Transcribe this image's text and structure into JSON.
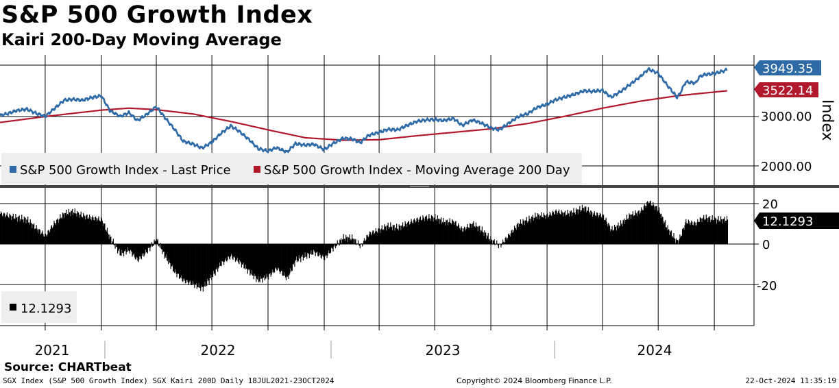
{
  "header": {
    "title": "S&P 500 Growth Index",
    "subtitle": "Kairi 200-Day Moving Average"
  },
  "footer": {
    "source": "Source: CHARTbeat",
    "left": "SGX Index (S&P 500 Growth Index) SGX Kairi 200D  Daily 18JUL2021-23OCT2024",
    "middle": "Copyright© 2024 Bloomberg Finance L.P.",
    "right": "22-Oct-2024 11:35:19"
  },
  "colors": {
    "price": "#2e6aa6",
    "ma": "#b2182b",
    "kairi": "#000000",
    "grid": "#000000",
    "legend_bg": "#eeeeee"
  },
  "chart_data": [
    {
      "type": "line",
      "title": "S&P 500 Growth Index",
      "ylabel": "Index",
      "ylim": [
        1600,
        4200
      ],
      "x_ticks": [
        "2021",
        "2022",
        "2023",
        "2024"
      ],
      "y_ticks": [
        "2000.00",
        "3000.00"
      ],
      "legend_position": "bottom-left",
      "series": [
        {
          "name": "S&P 500 Growth Index - Last Price",
          "last_label": "3949.35",
          "x": [
            "2021-07-19",
            "2021-08-01",
            "2021-08-15",
            "2021-09-01",
            "2021-09-15",
            "2021-10-01",
            "2021-10-15",
            "2021-11-01",
            "2021-11-15",
            "2021-12-01",
            "2021-12-15",
            "2022-01-01",
            "2022-01-15",
            "2022-02-01",
            "2022-02-15",
            "2022-03-01",
            "2022-03-15",
            "2022-04-01",
            "2022-04-15",
            "2022-05-01",
            "2022-05-15",
            "2022-06-01",
            "2022-06-15",
            "2022-07-01",
            "2022-07-15",
            "2022-08-01",
            "2022-08-15",
            "2022-09-01",
            "2022-09-15",
            "2022-10-01",
            "2022-10-15",
            "2022-11-01",
            "2022-11-15",
            "2022-12-01",
            "2022-12-15",
            "2023-01-01",
            "2023-01-15",
            "2023-02-01",
            "2023-02-15",
            "2023-03-01",
            "2023-03-15",
            "2023-04-01",
            "2023-04-15",
            "2023-05-01",
            "2023-05-15",
            "2023-06-01",
            "2023-06-15",
            "2023-07-01",
            "2023-07-15",
            "2023-08-01",
            "2023-08-15",
            "2023-09-01",
            "2023-09-15",
            "2023-10-01",
            "2023-10-15",
            "2023-11-01",
            "2023-11-15",
            "2023-12-01",
            "2023-12-15",
            "2024-01-01",
            "2024-01-15",
            "2024-02-01",
            "2024-02-15",
            "2024-03-01",
            "2024-03-15",
            "2024-04-01",
            "2024-04-15",
            "2024-05-01",
            "2024-05-15",
            "2024-06-01",
            "2024-06-15",
            "2024-07-01",
            "2024-07-15",
            "2024-08-01",
            "2024-08-05",
            "2024-08-15",
            "2024-09-01",
            "2024-09-06",
            "2024-09-15",
            "2024-10-01",
            "2024-10-15",
            "2024-10-22"
          ],
          "values": [
            3020,
            3060,
            3120,
            3150,
            3070,
            3000,
            3150,
            3330,
            3350,
            3330,
            3380,
            3420,
            3120,
            3000,
            3080,
            2920,
            3030,
            3200,
            2980,
            2740,
            2500,
            2440,
            2360,
            2480,
            2650,
            2810,
            2700,
            2520,
            2350,
            2300,
            2370,
            2280,
            2450,
            2420,
            2440,
            2330,
            2450,
            2560,
            2550,
            2470,
            2620,
            2680,
            2740,
            2730,
            2810,
            2900,
            2930,
            2940,
            2920,
            2960,
            2820,
            2930,
            2870,
            2770,
            2730,
            2880,
            3000,
            3060,
            3180,
            3250,
            3340,
            3400,
            3450,
            3520,
            3510,
            3530,
            3390,
            3510,
            3640,
            3800,
            3960,
            3880,
            3650,
            3390,
            3450,
            3700,
            3680,
            3800,
            3850,
            3870,
            3920,
            3949.35
          ]
        },
        {
          "name": "S&P 500 Growth Index - Moving Average 200 Day",
          "last_label": "3522.14",
          "x": [
            "2021-07-19",
            "2021-10-01",
            "2022-01-01",
            "2022-02-15",
            "2022-04-01",
            "2022-06-01",
            "2022-08-01",
            "2022-10-01",
            "2022-12-01",
            "2023-02-01",
            "2023-04-01",
            "2023-06-01",
            "2023-08-01",
            "2023-10-01",
            "2023-12-01",
            "2024-02-01",
            "2024-04-01",
            "2024-06-01",
            "2024-08-01",
            "2024-10-22"
          ],
          "values": [
            2880,
            3000,
            3130,
            3170,
            3140,
            3050,
            2900,
            2730,
            2570,
            2520,
            2530,
            2610,
            2680,
            2750,
            2860,
            3010,
            3170,
            3310,
            3420,
            3522.14
          ]
        }
      ]
    },
    {
      "type": "bar",
      "title": "Kairi 200-Day Moving Average",
      "ylim": [
        -30,
        25
      ],
      "y_ticks": [
        "20",
        "0",
        "-20"
      ],
      "last_label": "12.1293",
      "series": [
        {
          "name": "12.1293",
          "x": [
            "2021-07-19",
            "2021-08-01",
            "2021-08-15",
            "2021-09-01",
            "2021-09-15",
            "2021-10-01",
            "2021-10-15",
            "2021-11-01",
            "2021-11-15",
            "2021-12-01",
            "2021-12-15",
            "2022-01-01",
            "2022-01-15",
            "2022-02-01",
            "2022-02-15",
            "2022-03-01",
            "2022-03-15",
            "2022-04-01",
            "2022-04-15",
            "2022-05-01",
            "2022-05-15",
            "2022-06-01",
            "2022-06-15",
            "2022-07-01",
            "2022-07-15",
            "2022-08-01",
            "2022-08-15",
            "2022-09-01",
            "2022-09-15",
            "2022-10-01",
            "2022-10-15",
            "2022-11-01",
            "2022-11-15",
            "2022-12-01",
            "2022-12-15",
            "2023-01-01",
            "2023-01-15",
            "2023-02-01",
            "2023-02-15",
            "2023-03-01",
            "2023-03-15",
            "2023-04-01",
            "2023-04-15",
            "2023-05-01",
            "2023-05-15",
            "2023-06-01",
            "2023-06-15",
            "2023-07-01",
            "2023-07-15",
            "2023-08-01",
            "2023-08-15",
            "2023-09-01",
            "2023-09-15",
            "2023-10-01",
            "2023-10-15",
            "2023-11-01",
            "2023-11-15",
            "2023-12-01",
            "2023-12-15",
            "2024-01-01",
            "2024-01-15",
            "2024-02-01",
            "2024-02-15",
            "2024-03-01",
            "2024-03-15",
            "2024-04-01",
            "2024-04-15",
            "2024-05-01",
            "2024-05-15",
            "2024-06-01",
            "2024-06-15",
            "2024-07-01",
            "2024-07-15",
            "2024-08-01",
            "2024-08-05",
            "2024-08-15",
            "2024-09-01",
            "2024-09-06",
            "2024-09-15",
            "2024-10-01",
            "2024-10-15",
            "2024-10-22"
          ],
          "values": [
            15,
            14,
            13,
            12,
            8,
            4,
            10,
            15,
            16,
            14,
            13,
            12,
            3,
            -5,
            -3,
            -8,
            -4,
            2,
            -6,
            -14,
            -18,
            -20,
            -22,
            -16,
            -10,
            -6,
            -9,
            -14,
            -18,
            -16,
            -12,
            -17,
            -8,
            -6,
            -4,
            -7,
            -2,
            3,
            3,
            -1,
            5,
            7,
            9,
            8,
            10,
            12,
            13,
            13,
            11,
            11,
            7,
            10,
            7,
            2,
            -1,
            5,
            10,
            12,
            14,
            14,
            16,
            15,
            16,
            18,
            15,
            14,
            7,
            10,
            14,
            16,
            21,
            17,
            8,
            1,
            3,
            11,
            10,
            12,
            13,
            12,
            12,
            12.1293
          ]
        }
      ]
    }
  ]
}
